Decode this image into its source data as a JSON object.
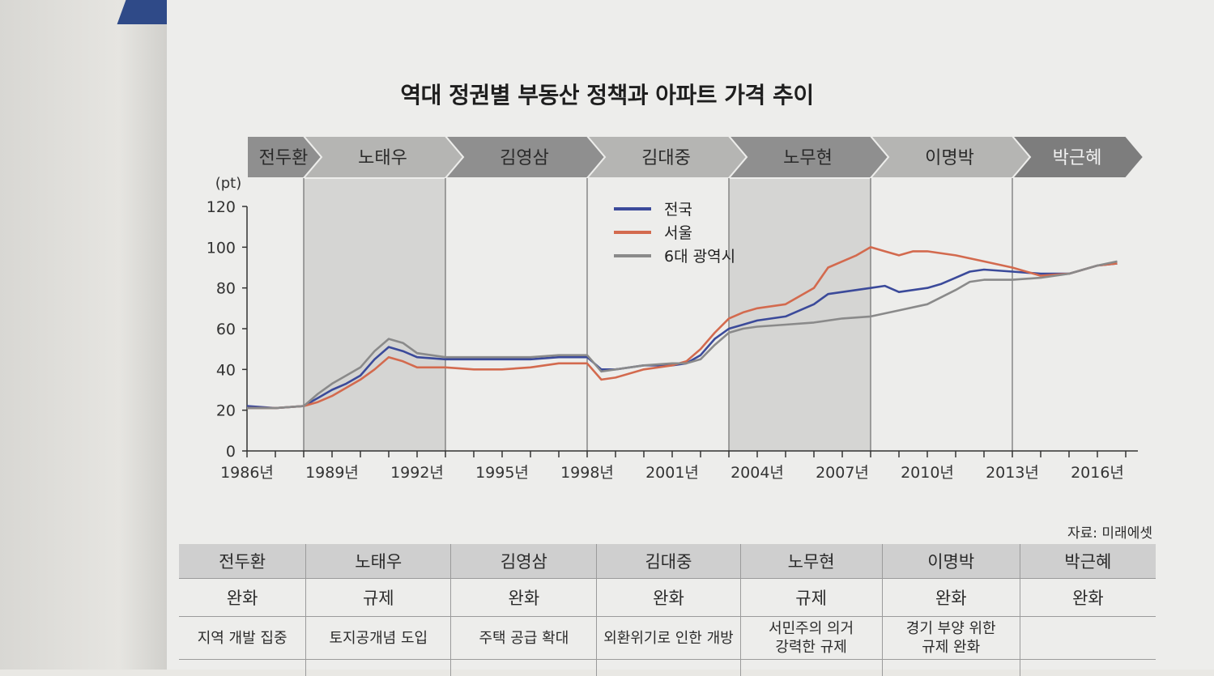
{
  "title": "역대 정권별 부동산 정책과 아파트 가격 추이",
  "source": "자료: 미래에셋",
  "chart_data": {
    "type": "line",
    "title": "역대 정권별 부동산 정책과 아파트 가격 추이",
    "ylabel": "(pt)",
    "ylim": [
      0,
      120
    ],
    "yticks": [
      0,
      20,
      40,
      60,
      80,
      100,
      120
    ],
    "xlim": [
      1986,
      2017
    ],
    "xticks": [
      "1986년",
      "1989년",
      "1992년",
      "1995년",
      "1998년",
      "2001년",
      "2004년",
      "2007년",
      "2010년",
      "2013년",
      "2016년"
    ],
    "eras": [
      {
        "name": "전두환",
        "start": 1986,
        "end": 1988,
        "shaded": false
      },
      {
        "name": "노태우",
        "start": 1988,
        "end": 1993,
        "shaded": true
      },
      {
        "name": "김영삼",
        "start": 1993,
        "end": 1998,
        "shaded": false
      },
      {
        "name": "김대중",
        "start": 1998,
        "end": 2003,
        "shaded": false
      },
      {
        "name": "노무현",
        "start": 2003,
        "end": 2008,
        "shaded": true
      },
      {
        "name": "이명박",
        "start": 2008,
        "end": 2013,
        "shaded": false
      },
      {
        "name": "박근혜",
        "start": 2013,
        "end": 2017,
        "shaded": false
      }
    ],
    "legend_position": "top-center",
    "series": [
      {
        "name": "전국",
        "color": "#3b4a9a",
        "x": [
          1986,
          1987,
          1988,
          1988.5,
          1989,
          1989.5,
          1990,
          1990.5,
          1991,
          1991.5,
          1992,
          1993,
          1994,
          1995,
          1996,
          1997,
          1998,
          1998.5,
          1999,
          2000,
          2001,
          2001.5,
          2002,
          2002.5,
          2003,
          2003.5,
          2004,
          2005,
          2006,
          2006.5,
          2007,
          2008,
          2008.5,
          2009,
          2010,
          2010.5,
          2011,
          2011.5,
          2012,
          2013,
          2014,
          2015,
          2016,
          2016.7
        ],
        "y": [
          22,
          21,
          22,
          26,
          30,
          33,
          37,
          45,
          51,
          49,
          46,
          45,
          45,
          45,
          45,
          46,
          46,
          40,
          40,
          42,
          42,
          43,
          47,
          55,
          60,
          62,
          64,
          66,
          72,
          77,
          78,
          80,
          81,
          78,
          80,
          82,
          85,
          88,
          89,
          88,
          87,
          87,
          91,
          92
        ]
      },
      {
        "name": "서울",
        "color": "#d36a4e",
        "x": [
          1986,
          1987,
          1988,
          1988.5,
          1989,
          1989.5,
          1990,
          1990.5,
          1991,
          1991.5,
          1992,
          1993,
          1994,
          1995,
          1996,
          1997,
          1998,
          1998.5,
          1999,
          2000,
          2001,
          2001.5,
          2002,
          2002.5,
          2003,
          2003.5,
          2004,
          2005,
          2006,
          2006.5,
          2007,
          2007.5,
          2008,
          2008.5,
          2009,
          2009.5,
          2010,
          2011,
          2012,
          2013,
          2014,
          2015,
          2016,
          2016.7
        ],
        "y": [
          21,
          21,
          22,
          24,
          27,
          31,
          35,
          40,
          46,
          44,
          41,
          41,
          40,
          40,
          41,
          43,
          43,
          35,
          36,
          40,
          42,
          44,
          50,
          58,
          65,
          68,
          70,
          72,
          80,
          90,
          93,
          96,
          100,
          98,
          96,
          98,
          98,
          96,
          93,
          90,
          86,
          87,
          91,
          92
        ]
      },
      {
        "name": "6대 광역시",
        "color": "#8a8a8a",
        "x": [
          1986,
          1987,
          1988,
          1988.5,
          1989,
          1989.5,
          1990,
          1990.5,
          1991,
          1991.5,
          1992,
          1993,
          1994,
          1995,
          1996,
          1997,
          1998,
          1998.5,
          1999,
          2000,
          2001,
          2001.5,
          2002,
          2002.5,
          2003,
          2003.5,
          2004,
          2005,
          2006,
          2007,
          2008,
          2009,
          2010,
          2011,
          2011.5,
          2012,
          2013,
          2014,
          2015,
          2016,
          2016.7
        ],
        "y": [
          21,
          21,
          22,
          28,
          33,
          37,
          41,
          49,
          55,
          53,
          48,
          46,
          46,
          46,
          46,
          47,
          47,
          39,
          40,
          42,
          43,
          43,
          45,
          52,
          58,
          60,
          61,
          62,
          63,
          65,
          66,
          69,
          72,
          79,
          83,
          84,
          84,
          85,
          87,
          91,
          93
        ]
      }
    ]
  },
  "table": {
    "governments": [
      "전두환",
      "노태우",
      "김영삼",
      "김대중",
      "노무현",
      "이명박",
      "박근혜"
    ],
    "stances": [
      "완화",
      "규제",
      "완화",
      "완화",
      "규제",
      "완화",
      "완화"
    ],
    "descriptions": [
      "지역 개발 집중",
      "토지공개념 도입",
      "주택 공급 확대",
      "외환위기로 인한 개방",
      "서민주의 의거\n강력한 규제",
      "경기 부양 위한\n규제 완화",
      ""
    ]
  }
}
